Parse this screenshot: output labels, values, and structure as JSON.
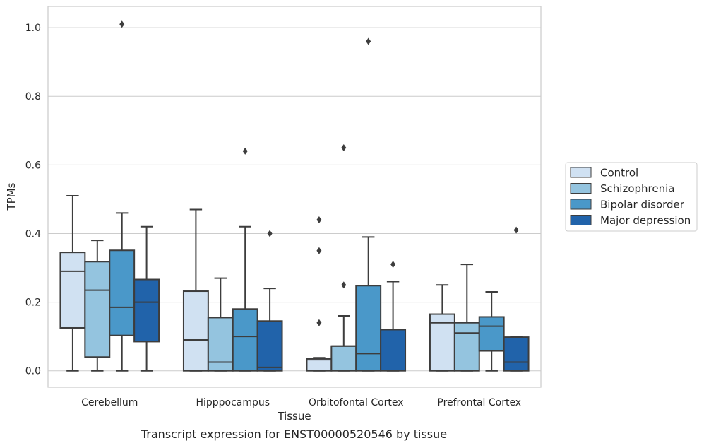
{
  "caption": "Transcript expression for ENST00000520546 by tissue",
  "chart_data": {
    "type": "boxplot",
    "xlabel": "Tissue",
    "ylabel": "TPMs",
    "ylim": [
      -0.048,
      1.062
    ],
    "yticks": [
      0.0,
      0.2,
      0.4,
      0.6,
      0.8,
      1.0
    ],
    "ytick_labels": [
      "0.0",
      "0.2",
      "0.4",
      "0.6",
      "0.8",
      "1.0"
    ],
    "grid": true,
    "legend_position": "right",
    "categories": [
      "Cerebellum",
      "Hipppocampus",
      "Orbitofontal Cortex",
      "Prefrontal Cortex"
    ],
    "series": [
      {
        "name": "Control",
        "color": "#d0e1f2",
        "boxes": [
          {
            "whislo": 0.0,
            "q1": 0.125,
            "med": 0.29,
            "q3": 0.345,
            "whishi": 0.51,
            "fliers": []
          },
          {
            "whislo": 0.0,
            "q1": 0.0,
            "med": 0.09,
            "q3": 0.232,
            "whishi": 0.47,
            "fliers": []
          },
          {
            "whislo": 0.0,
            "q1": 0.0,
            "med": 0.032,
            "q3": 0.036,
            "whishi": 0.038,
            "fliers": [
              0.14,
              0.35,
              0.44
            ]
          },
          {
            "whislo": 0.0,
            "q1": 0.0,
            "med": 0.14,
            "q3": 0.165,
            "whishi": 0.25,
            "fliers": []
          }
        ]
      },
      {
        "name": "Schizophrenia",
        "color": "#94c4df",
        "boxes": [
          {
            "whislo": 0.0,
            "q1": 0.04,
            "med": 0.235,
            "q3": 0.318,
            "whishi": 0.38,
            "fliers": []
          },
          {
            "whislo": 0.0,
            "q1": 0.0,
            "med": 0.025,
            "q3": 0.155,
            "whishi": 0.27,
            "fliers": []
          },
          {
            "whislo": 0.0,
            "q1": 0.0,
            "med": 0.072,
            "q3": 0.072,
            "whishi": 0.16,
            "fliers": [
              0.25,
              0.65
            ]
          },
          {
            "whislo": 0.0,
            "q1": 0.0,
            "med": 0.11,
            "q3": 0.14,
            "whishi": 0.31,
            "fliers": []
          }
        ]
      },
      {
        "name": "Bipolar disorder",
        "color": "#4a98c9",
        "boxes": [
          {
            "whislo": 0.0,
            "q1": 0.103,
            "med": 0.185,
            "q3": 0.351,
            "whishi": 0.46,
            "fliers": [
              1.01
            ]
          },
          {
            "whislo": 0.0,
            "q1": 0.0,
            "med": 0.1,
            "q3": 0.18,
            "whishi": 0.42,
            "fliers": [
              0.64
            ]
          },
          {
            "whislo": 0.0,
            "q1": 0.0,
            "med": 0.05,
            "q3": 0.248,
            "whishi": 0.39,
            "fliers": [
              0.96
            ]
          },
          {
            "whislo": 0.0,
            "q1": 0.058,
            "med": 0.13,
            "q3": 0.157,
            "whishi": 0.23,
            "fliers": []
          }
        ]
      },
      {
        "name": "Major depression",
        "color": "#2163aa",
        "boxes": [
          {
            "whislo": 0.0,
            "q1": 0.085,
            "med": 0.2,
            "q3": 0.266,
            "whishi": 0.42,
            "fliers": []
          },
          {
            "whislo": 0.0,
            "q1": 0.0,
            "med": 0.01,
            "q3": 0.145,
            "whishi": 0.24,
            "fliers": [
              0.4
            ]
          },
          {
            "whislo": 0.0,
            "q1": 0.0,
            "med": 0.12,
            "q3": 0.12,
            "whishi": 0.26,
            "fliers": [
              0.31
            ]
          },
          {
            "whislo": 0.0,
            "q1": 0.0,
            "med": 0.025,
            "q3": 0.098,
            "whishi": 0.1,
            "fliers": [
              0.41
            ]
          }
        ]
      }
    ]
  }
}
